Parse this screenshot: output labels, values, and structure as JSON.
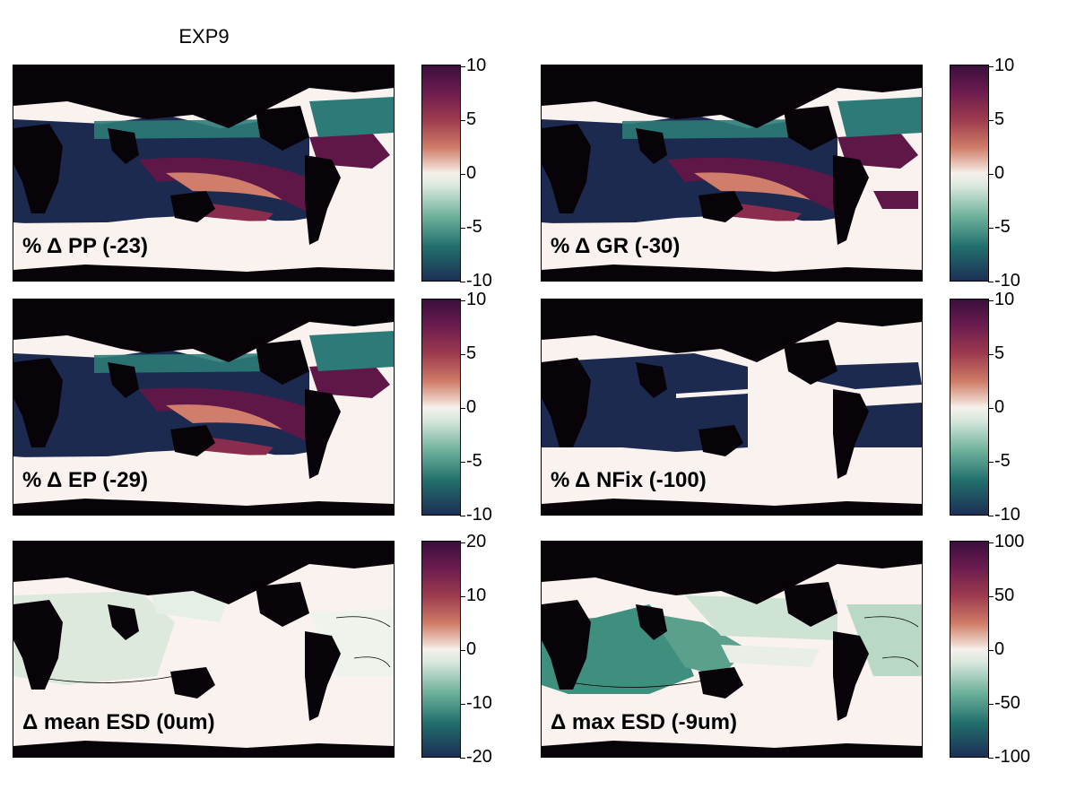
{
  "figure_title": "EXP9",
  "colors": {
    "land": "#080308",
    "ocean_neutral": "#f9f2ef",
    "navy": "#1b2a4e",
    "teal": "#2d7b78",
    "maroon": "#5e1747",
    "salmon": "#d07d6c"
  },
  "chart_data": [
    {
      "type": "heatmap",
      "panel_label": "% Δ PP (-23)",
      "colorbar": {
        "ticks": [
          "10",
          "5",
          "0",
          "-5",
          "-10"
        ],
        "range": [
          -10,
          10
        ]
      }
    },
    {
      "type": "heatmap",
      "panel_label": "% Δ GR (-30)",
      "colorbar": {
        "ticks": [
          "10",
          "5",
          "0",
          "-5",
          "-10"
        ],
        "range": [
          -10,
          10
        ]
      }
    },
    {
      "type": "heatmap",
      "panel_label": "% Δ EP (-29)",
      "colorbar": {
        "ticks": [
          "10",
          "5",
          "0",
          "-5",
          "-10"
        ],
        "range": [
          -10,
          10
        ]
      }
    },
    {
      "type": "heatmap",
      "panel_label": "% Δ NFix (-100)",
      "colorbar": {
        "ticks": [
          "10",
          "5",
          "0",
          "-5",
          "-10"
        ],
        "range": [
          -10,
          10
        ]
      }
    },
    {
      "type": "heatmap",
      "panel_label": "Δ mean ESD (0um)",
      "colorbar": {
        "ticks": [
          "20",
          "10",
          "0",
          "-10",
          "-20"
        ],
        "range": [
          -20,
          20
        ]
      }
    },
    {
      "type": "heatmap",
      "panel_label": "Δ max ESD (-9um)",
      "colorbar": {
        "ticks": [
          "100",
          "50",
          "0",
          "-50",
          "-100"
        ],
        "range": [
          -100,
          100
        ]
      }
    }
  ]
}
